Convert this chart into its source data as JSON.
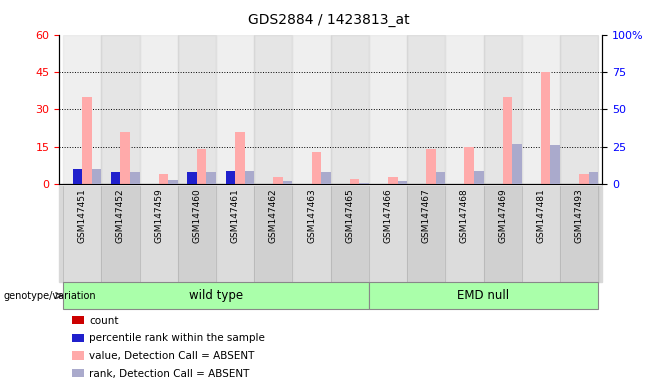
{
  "title": "GDS2884 / 1423813_at",
  "samples": [
    "GSM147451",
    "GSM147452",
    "GSM147459",
    "GSM147460",
    "GSM147461",
    "GSM147462",
    "GSM147463",
    "GSM147465",
    "GSM147466",
    "GSM147467",
    "GSM147468",
    "GSM147469",
    "GSM147481",
    "GSM147493"
  ],
  "wt_count": 8,
  "emd_count": 6,
  "count": [
    0,
    0,
    0,
    0,
    0,
    0,
    0,
    0,
    0,
    0,
    0,
    0,
    0,
    0
  ],
  "percentile": [
    10,
    8,
    0,
    8,
    9,
    0,
    0,
    0,
    0,
    0,
    0,
    0,
    0,
    0
  ],
  "value_absent": [
    35,
    21,
    4,
    14,
    21,
    3,
    13,
    2,
    3,
    14,
    15,
    35,
    45,
    4
  ],
  "rank_absent": [
    10,
    8,
    3,
    8,
    9,
    2,
    8,
    1,
    2,
    8,
    9,
    27,
    26,
    8
  ],
  "ylim_left": [
    0,
    60
  ],
  "ylim_right": [
    0,
    100
  ],
  "yticks_left": [
    0,
    15,
    30,
    45,
    60
  ],
  "yticks_right": [
    0,
    25,
    50,
    75,
    100
  ],
  "bar_width": 0.25,
  "color_count": "#cc0000",
  "color_pct": "#2020cc",
  "color_value_absent": "#ffaaaa",
  "color_rank_absent": "#aaaacc",
  "wt_color": "#aaffaa",
  "emd_color": "#aaffaa",
  "group_label": "genotype/variation",
  "legend_labels": [
    "count",
    "percentile rank within the sample",
    "value, Detection Call = ABSENT",
    "rank, Detection Call = ABSENT"
  ],
  "legend_colors": [
    "#cc0000",
    "#2020cc",
    "#ffaaaa",
    "#aaaacc"
  ],
  "col_bg_even": "#e0e0e0",
  "col_bg_odd": "#cccccc"
}
